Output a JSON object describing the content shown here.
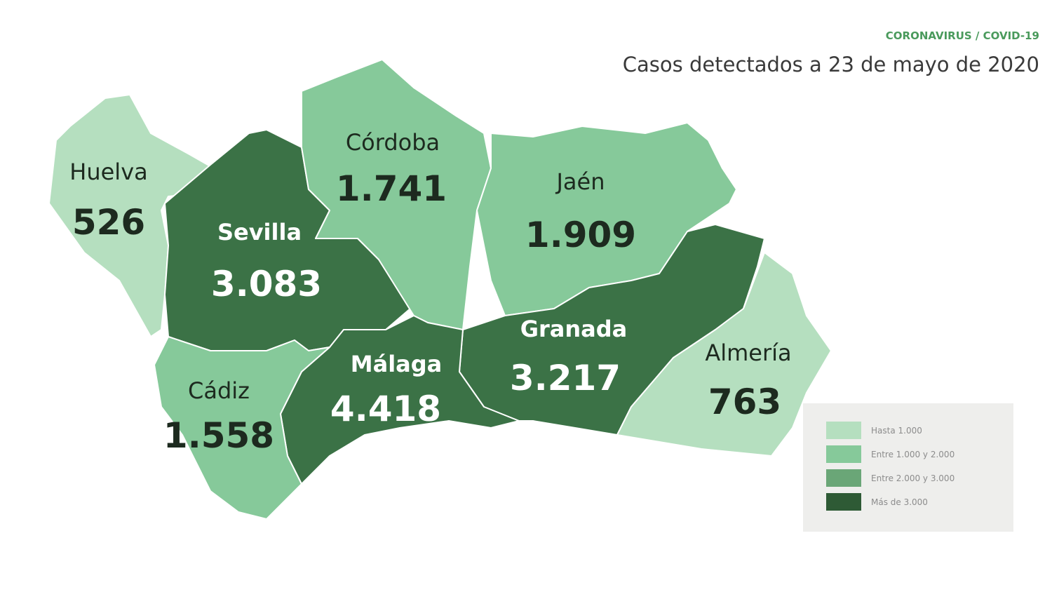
{
  "header": {
    "kicker": "CORONAVIRUS / COVID-19",
    "title": "Casos detectados a 23 de mayo de 2020"
  },
  "regions": [
    {
      "name": "Huelva",
      "cases": "526"
    },
    {
      "name": "Sevilla",
      "cases": "3.083"
    },
    {
      "name": "Córdoba",
      "cases": "1.741"
    },
    {
      "name": "Jaén",
      "cases": "1.909"
    },
    {
      "name": "Granada",
      "cases": "3.217"
    },
    {
      "name": "Almería",
      "cases": "763"
    },
    {
      "name": "Málaga",
      "cases": "4.418"
    },
    {
      "name": "Cádiz",
      "cases": "1.558"
    }
  ],
  "legend": [
    "Hasta 1.000",
    "Entre 1.000 y 2.000",
    "Entre 2.000 y 3.000",
    "Más de 3.000"
  ]
}
